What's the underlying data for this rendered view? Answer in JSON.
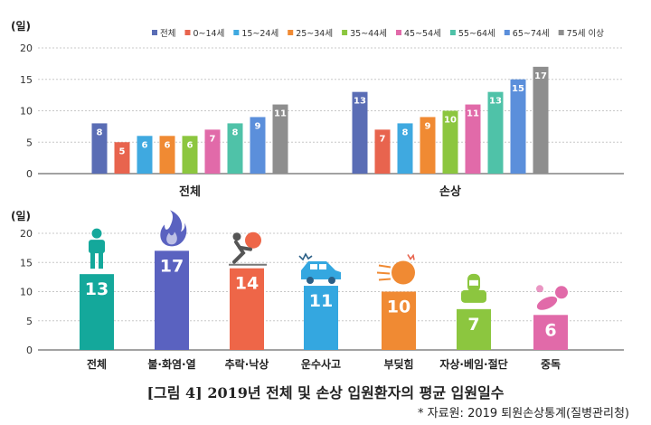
{
  "chart_data": [
    {
      "type": "bar",
      "ylabel": "(일)",
      "ylim": [
        0,
        20
      ],
      "yticks": [
        0,
        5,
        10,
        15,
        20
      ],
      "grid": true,
      "legend_position": "top-right",
      "categories": [
        "전체",
        "손상"
      ],
      "series": [
        {
          "name": "전체",
          "color": "#5a6db5",
          "values": [
            8,
            13
          ]
        },
        {
          "name": "0~14세",
          "color": "#e8644e",
          "values": [
            5,
            7
          ]
        },
        {
          "name": "15~24세",
          "color": "#3fa9e0",
          "values": [
            6,
            8
          ]
        },
        {
          "name": "25~34세",
          "color": "#f08a33",
          "values": [
            6,
            9
          ]
        },
        {
          "name": "35~44세",
          "color": "#8cc63f",
          "values": [
            6,
            10
          ]
        },
        {
          "name": "45~54세",
          "color": "#e16aa9",
          "values": [
            7,
            11
          ]
        },
        {
          "name": "55~64세",
          "color": "#4fc2a8",
          "values": [
            8,
            13
          ]
        },
        {
          "name": "65~74세",
          "color": "#5b8fdb",
          "values": [
            9,
            15
          ]
        },
        {
          "name": "75세 이상",
          "color": "#8e8e8e",
          "values": [
            11,
            17
          ]
        }
      ]
    },
    {
      "type": "bar",
      "ylabel": "(일)",
      "ylim": [
        0,
        20
      ],
      "yticks": [
        0,
        5,
        10,
        15,
        20
      ],
      "grid": true,
      "categories": [
        "전체",
        "불·화염·열",
        "추락·낙상",
        "운수사고",
        "부딪힘",
        "자상·베임·절단",
        "중독"
      ],
      "values": [
        13,
        17,
        14,
        11,
        10,
        7,
        6
      ],
      "colors": [
        "#14a89b",
        "#5a62c0",
        "#ee6648",
        "#34a7e0",
        "#f08a33",
        "#8cc63f",
        "#e16aa9"
      ],
      "icons": [
        "person-icon",
        "flame-icon",
        "falling-person-icon",
        "car-crash-icon",
        "collision-icon",
        "cut-finger-icon",
        "poison-pills-icon"
      ]
    }
  ],
  "caption": "[그림 4] 2019년 전체 및 손상 입원환자의 평균 입원일수",
  "source": "* 자료원: 2019 퇴원손상통계(질병관리청)"
}
